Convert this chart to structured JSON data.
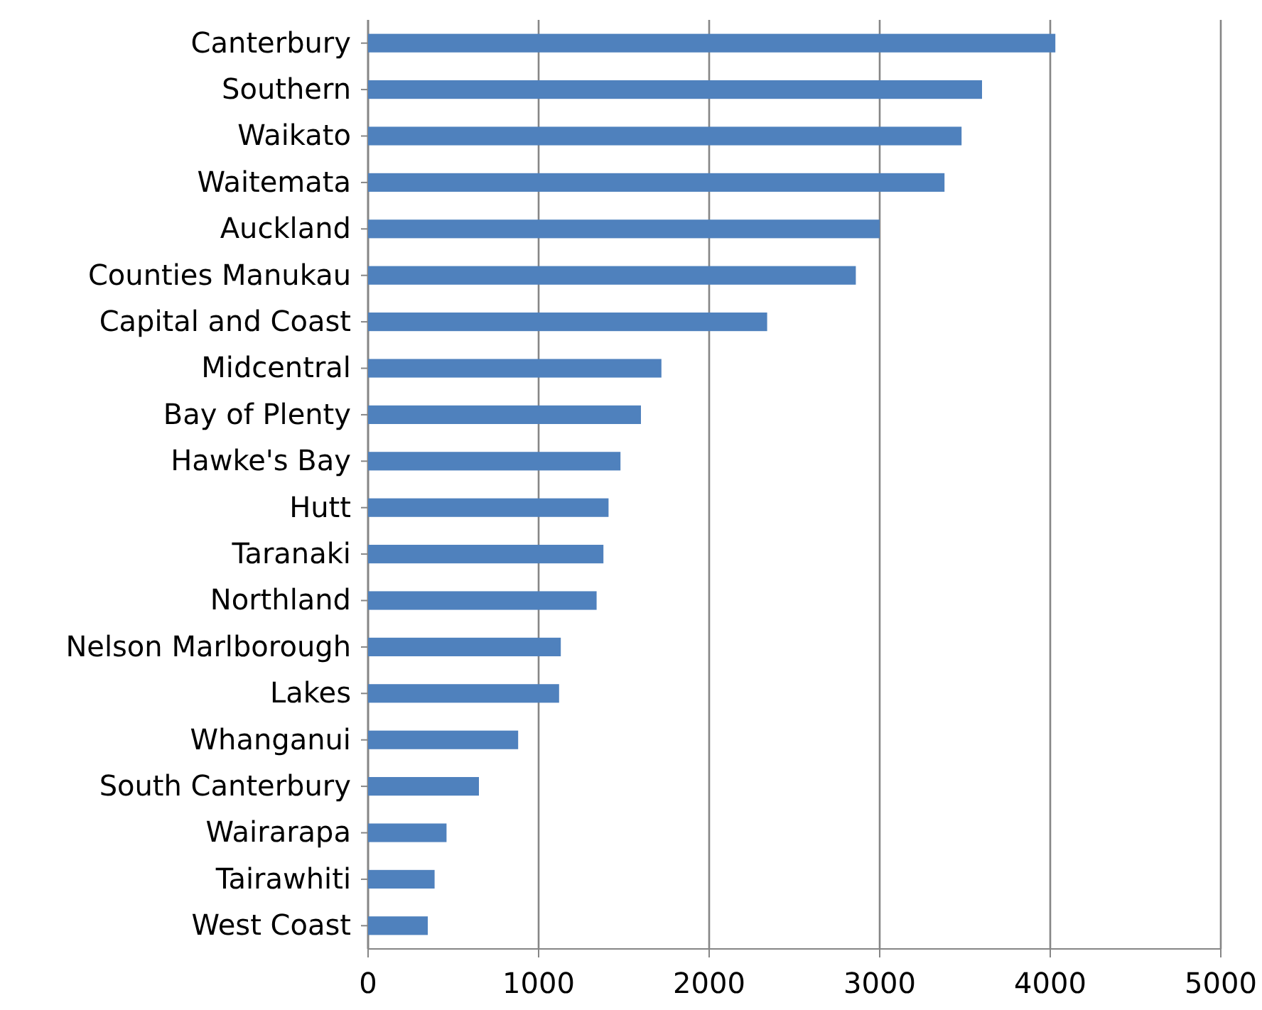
{
  "chart_data": {
    "type": "bar",
    "orientation": "horizontal",
    "categories": [
      "Canterbury",
      "Southern",
      "Waikato",
      "Waitemata",
      "Auckland",
      "Counties Manukau",
      "Capital and Coast",
      "Midcentral",
      "Bay of Plenty",
      "Hawke's Bay",
      "Hutt",
      "Taranaki",
      "Northland",
      "Nelson Marlborough",
      "Lakes",
      "Whanganui",
      "South Canterbury",
      "Wairarapa",
      "Tairawhiti",
      "West Coast"
    ],
    "values": [
      4030,
      3600,
      3480,
      3380,
      3000,
      2860,
      2340,
      1720,
      1600,
      1480,
      1410,
      1380,
      1340,
      1130,
      1120,
      880,
      650,
      460,
      390,
      350
    ],
    "color": "#4f81bd",
    "xlim": [
      0,
      5000
    ],
    "xticks": [
      0,
      1000,
      2000,
      3000,
      4000,
      5000
    ],
    "grid": "x"
  }
}
